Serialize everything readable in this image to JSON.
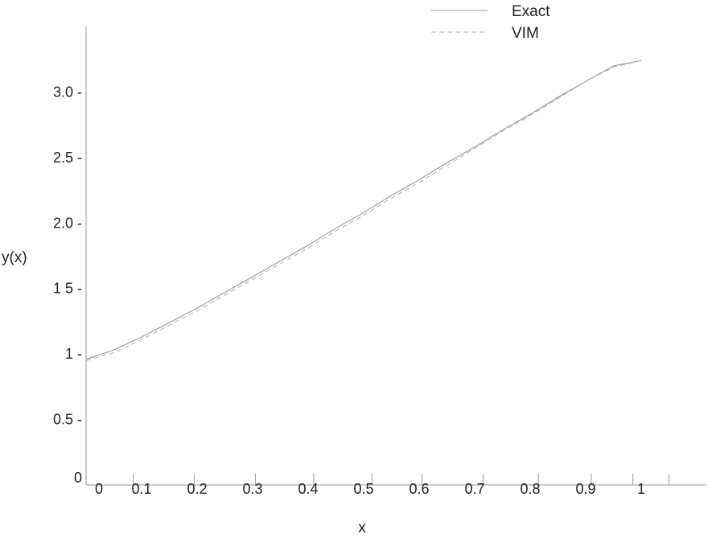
{
  "chart_data": {
    "type": "line",
    "xlabel": "x",
    "ylabel": "y(x)",
    "xlim": [
      0,
      1.05
    ],
    "ylim": [
      0,
      3.5
    ],
    "x_tick_labels": [
      "0",
      "0.1",
      "0.2",
      "0.3",
      "0.4",
      "0.5",
      "0.6",
      "0.7",
      "0.8",
      "0.9",
      "1"
    ],
    "x_tick_values": [
      0,
      0.1,
      0.2,
      0.3,
      0.4,
      0.5,
      0.6,
      0.7,
      0.8,
      0.9,
      1.0
    ],
    "y_tick_labels": [
      "0",
      "0.5 -",
      "1 -",
      "1 5 -",
      "2.0 -",
      "2.5 -",
      "3.0 -"
    ],
    "y_tick_values": [
      0,
      0.5,
      1.0,
      1.5,
      2.0,
      2.5,
      3.0
    ],
    "grid": false,
    "legend_position": "top-right",
    "series": [
      {
        "name": "Exact",
        "style": "solid",
        "color": "#9a9a9a",
        "x": [
          0,
          0.05,
          0.1,
          0.15,
          0.2,
          0.25,
          0.3,
          0.35,
          0.4,
          0.45,
          0.5,
          0.55,
          0.6,
          0.65,
          0.7,
          0.75,
          0.8,
          0.85,
          0.9,
          0.95,
          1.0
        ],
        "y": [
          0.96,
          1.03,
          1.13,
          1.24,
          1.35,
          1.47,
          1.59,
          1.71,
          1.83,
          1.96,
          2.08,
          2.21,
          2.33,
          2.46,
          2.58,
          2.71,
          2.83,
          2.96,
          3.08,
          3.2,
          3.24
        ]
      },
      {
        "name": "VIM",
        "style": "dashed",
        "color": "#b4b4b4",
        "x": [
          0,
          0.05,
          0.1,
          0.15,
          0.2,
          0.25,
          0.3,
          0.35,
          0.4,
          0.45,
          0.5,
          0.55,
          0.6,
          0.65,
          0.7,
          0.75,
          0.8,
          0.85,
          0.9,
          0.95,
          1.0
        ],
        "y": [
          0.95,
          1.01,
          1.11,
          1.22,
          1.33,
          1.45,
          1.57,
          1.69,
          1.81,
          1.94,
          2.06,
          2.19,
          2.31,
          2.44,
          2.57,
          2.7,
          2.82,
          2.95,
          3.08,
          3.19,
          3.24
        ]
      }
    ]
  }
}
